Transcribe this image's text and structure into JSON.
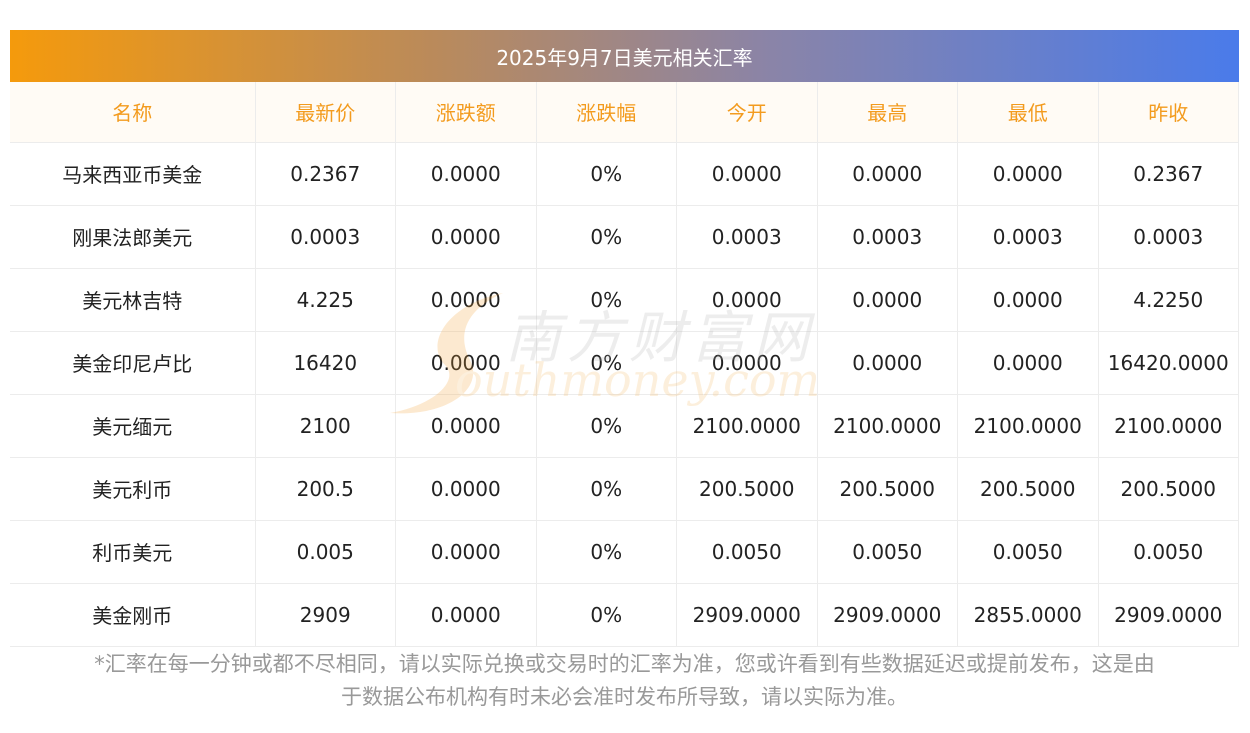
{
  "title": "2025年9月7日美元相关汇率",
  "headers": [
    "名称",
    "最新价",
    "涨跌额",
    "涨跌幅",
    "今开",
    "最高",
    "最低",
    "昨收"
  ],
  "rows": [
    [
      "马来西亚币美金",
      "0.2367",
      "0.0000",
      "0%",
      "0.0000",
      "0.0000",
      "0.0000",
      "0.2367"
    ],
    [
      "刚果法郎美元",
      "0.0003",
      "0.0000",
      "0%",
      "0.0003",
      "0.0003",
      "0.0003",
      "0.0003"
    ],
    [
      "美元林吉特",
      "4.225",
      "0.0000",
      "0%",
      "0.0000",
      "0.0000",
      "0.0000",
      "4.2250"
    ],
    [
      "美金印尼卢比",
      "16420",
      "0.0000",
      "0%",
      "0.0000",
      "0.0000",
      "0.0000",
      "16420.0000"
    ],
    [
      "美元缅元",
      "2100",
      "0.0000",
      "0%",
      "2100.0000",
      "2100.0000",
      "2100.0000",
      "2100.0000"
    ],
    [
      "美元利币",
      "200.5",
      "0.0000",
      "0%",
      "200.5000",
      "200.5000",
      "200.5000",
      "200.5000"
    ],
    [
      "利币美元",
      "0.005",
      "0.0000",
      "0%",
      "0.0050",
      "0.0050",
      "0.0050",
      "0.0050"
    ],
    [
      "美金刚币",
      "2909",
      "0.0000",
      "0%",
      "2909.0000",
      "2909.0000",
      "2855.0000",
      "2909.0000"
    ]
  ],
  "watermark": {
    "cn": "南方财富网",
    "en": "outhmoney.com"
  },
  "footnote_line1": "*汇率在每一分钟或都不尽相同，请以实际兑换或交易时的汇率为准，您或许看到有些数据延迟或提前发布，这是由",
  "footnote_line2": "于数据公布机构有时未必会准时发布所导致，请以实际为准。",
  "colors": {
    "header_text": "#f39b1e",
    "header_bg": "#fffbf5",
    "title_gradient_start": "#f59a0c",
    "title_gradient_end": "#4a7bea",
    "footnote_text": "#999999"
  }
}
